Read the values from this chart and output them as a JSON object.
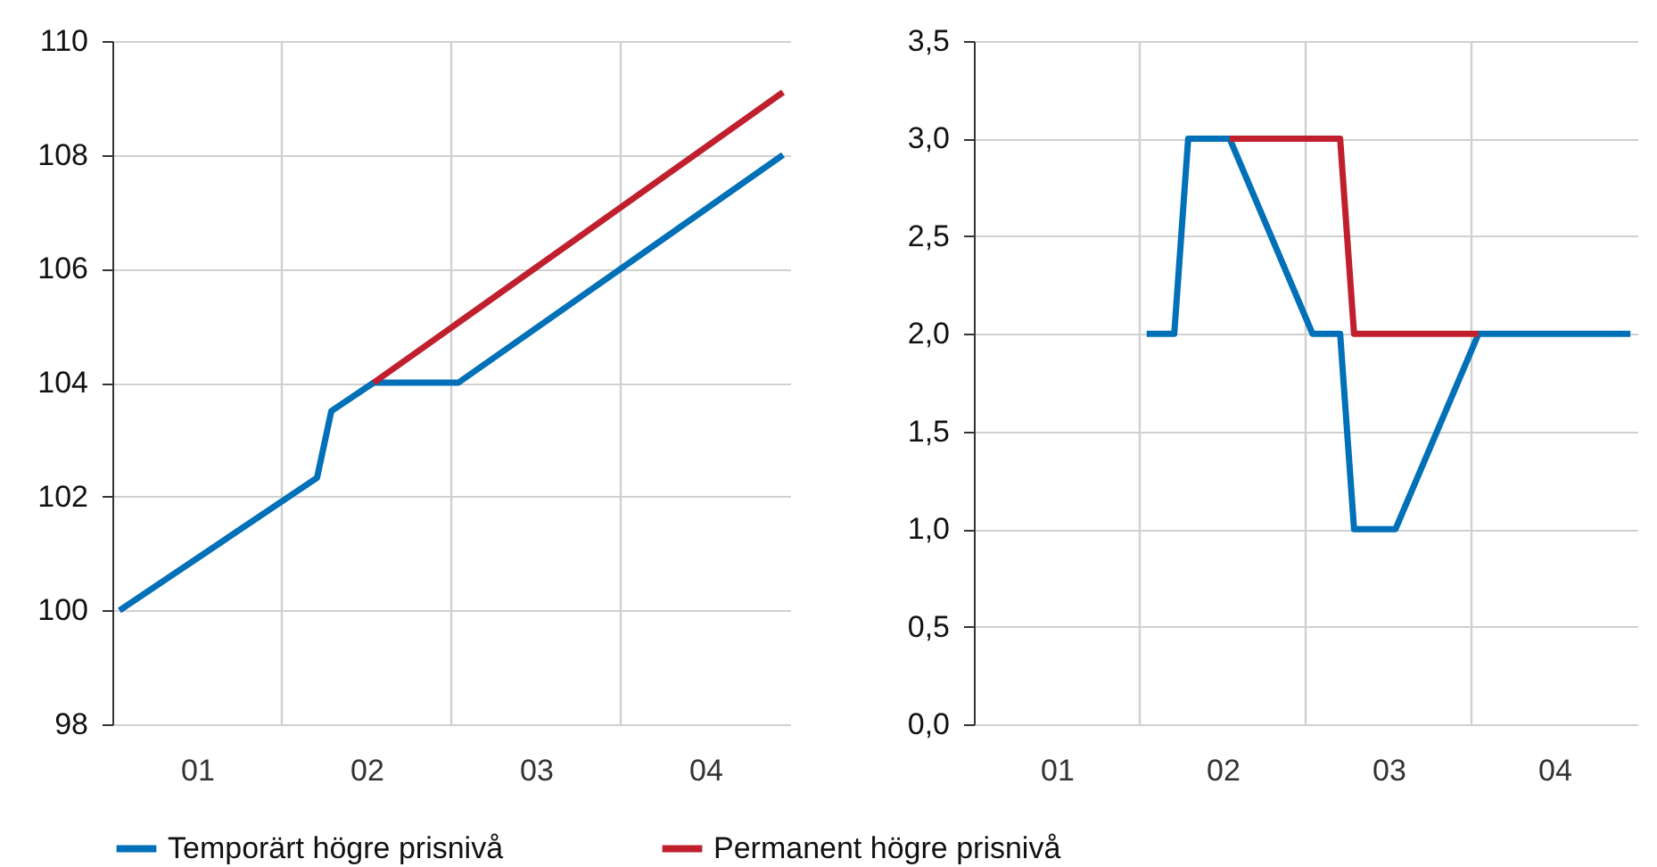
{
  "chart_data": [
    {
      "type": "line",
      "xlim": [
        0.5,
        4.5
      ],
      "xticks": [
        {
          "value": 1,
          "label": "01"
        },
        {
          "value": 2,
          "label": "02"
        },
        {
          "value": 3,
          "label": "03"
        },
        {
          "value": 4,
          "label": "04"
        }
      ],
      "ylim": [
        98,
        110
      ],
      "yticks": [
        98,
        100,
        102,
        104,
        106,
        108,
        110
      ],
      "grid": "y",
      "legend": "bottom",
      "line_style": "solid",
      "ref_lines": [
        {
          "axis": "x",
          "value": 1.5,
          "color": "#d0d0d0"
        },
        {
          "axis": "x",
          "value": 2.5,
          "color": "#d0d0d0"
        },
        {
          "axis": "x",
          "value": 3.5,
          "color": "#d0d0d0"
        }
      ],
      "series": [
        {
          "name": "Temporärt högre prisnivå",
          "color": "#0070b8",
          "x": [
            0.542,
            1.708,
            1.792,
            2.042,
            2.542,
            4.458
          ],
          "values": [
            100,
            102.33,
            103.5,
            104,
            104,
            108
          ]
        },
        {
          "name": "Permanent högre prisnivå",
          "color": "#c0202e",
          "x": [
            2.042,
            4.458
          ],
          "values": [
            104,
            109.1
          ]
        }
      ]
    },
    {
      "type": "line",
      "xlim": [
        0.5,
        4.5
      ],
      "xticks": [
        {
          "value": 1,
          "label": "01"
        },
        {
          "value": 2,
          "label": "02"
        },
        {
          "value": 3,
          "label": "03"
        },
        {
          "value": 4,
          "label": "04"
        }
      ],
      "ylim": [
        0,
        3.5
      ],
      "yticks": [
        {
          "value": 0,
          "label": "0,0"
        },
        {
          "value": 0.5,
          "label": "0,5"
        },
        {
          "value": 1,
          "label": "1,0"
        },
        {
          "value": 1.5,
          "label": "1,5"
        },
        {
          "value": 2,
          "label": "2,0"
        },
        {
          "value": 2.5,
          "label": "2,5"
        },
        {
          "value": 3,
          "label": "3,0"
        },
        {
          "value": 3.5,
          "label": "3,5"
        }
      ],
      "grid": "y",
      "legend": "bottom",
      "line_style": "solid",
      "ref_lines": [
        {
          "axis": "x",
          "value": 1.5,
          "color": "#d0d0d0"
        },
        {
          "axis": "x",
          "value": 2.5,
          "color": "#d0d0d0"
        },
        {
          "axis": "x",
          "value": 3.5,
          "color": "#d0d0d0"
        }
      ],
      "series": [
        {
          "name": "Temporärt högre prisnivå",
          "color": "#0070b8",
          "x": [
            1.542,
            1.708,
            1.792,
            2.042,
            2.542,
            2.708,
            2.792,
            3.042,
            3.542,
            4.458
          ],
          "values": [
            2,
            2,
            3,
            3,
            2,
            2,
            1,
            1,
            2,
            2
          ]
        },
        {
          "name": "Permanent högre prisnivå",
          "color": "#c0202e",
          "x": [
            2.042,
            2.708,
            2.792,
            3.542
          ],
          "values": [
            3,
            3,
            2,
            2
          ]
        }
      ]
    }
  ]
}
